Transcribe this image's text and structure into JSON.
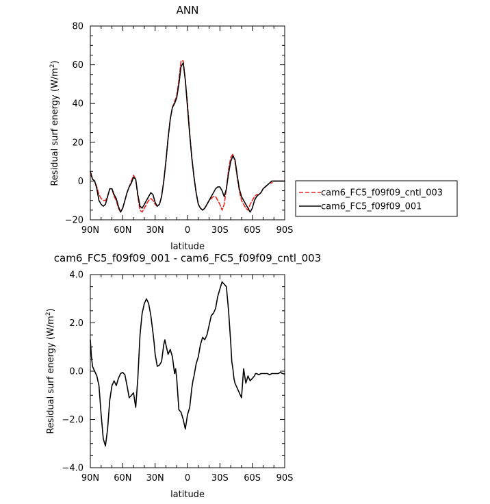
{
  "chart_data": [
    {
      "type": "line",
      "title": "ANN",
      "xlabel": "latitude",
      "ylabel": "Residual surf energy (W/m²)",
      "ylabel_parts": {
        "main": "Residual surf energy (W/m",
        "sup": "2",
        "end": ")"
      },
      "xlim": [
        90,
        -90
      ],
      "ylim": [
        -20,
        80
      ],
      "yticks": [
        -20,
        0,
        20,
        40,
        60,
        80
      ],
      "ytick_labels": [
        "−20",
        "0",
        "20",
        "40",
        "60",
        "80"
      ],
      "xticks": [
        90,
        60,
        30,
        0,
        -30,
        -60,
        -90
      ],
      "xtick_labels": [
        "90N",
        "60N",
        "30N",
        "0",
        "30S",
        "60S",
        "90S"
      ],
      "grid": false,
      "legend_position": "right",
      "series": [
        {
          "name": "cam6_FC5_f09f09_cntl_003",
          "color": "#e8231f",
          "dash": "dashed",
          "x": [
            90,
            88,
            86,
            84,
            82,
            80,
            78,
            76,
            74,
            72,
            70,
            68,
            66,
            64,
            62,
            60,
            58,
            56,
            54,
            52,
            50,
            48,
            46,
            44,
            42,
            40,
            38,
            36,
            34,
            32,
            30,
            28,
            26,
            24,
            22,
            20,
            18,
            16,
            14,
            12,
            10,
            8,
            6,
            4,
            2,
            0,
            -2,
            -4,
            -6,
            -8,
            -10,
            -12,
            -14,
            -16,
            -18,
            -20,
            -22,
            -24,
            -26,
            -28,
            -30,
            -32,
            -34,
            -36,
            -38,
            -40,
            -42,
            -44,
            -46,
            -48,
            -50,
            -52,
            -54,
            -56,
            -58,
            -60,
            -62,
            -64,
            -66,
            -68,
            -70,
            -72,
            -74,
            -76,
            -78,
            -80,
            -82,
            -84,
            -86,
            -88,
            -90
          ],
          "y": [
            4,
            1,
            0,
            -3,
            -7,
            -9,
            -10,
            -10,
            -8,
            -4,
            -4,
            -8,
            -10,
            -14,
            -16,
            -14,
            -10,
            -6,
            -3,
            0,
            3,
            1,
            -8,
            -15,
            -16,
            -14,
            -12,
            -10,
            -9,
            -10,
            -12,
            -13,
            -12,
            -8,
            0,
            10,
            22,
            32,
            38,
            41,
            44,
            52,
            62,
            62,
            52,
            40,
            25,
            12,
            2,
            -6,
            -12,
            -14,
            -15,
            -14,
            -12,
            -10,
            -9,
            -8,
            -8,
            -10,
            -12,
            -15,
            -12,
            -4,
            6,
            12,
            14,
            10,
            2,
            -5,
            -10,
            -12,
            -14,
            -15,
            -12,
            -10,
            -8,
            -7,
            -7,
            -6,
            -4,
            -3,
            -2,
            -1,
            -1,
            0,
            0,
            0,
            0,
            0,
            0
          ]
        },
        {
          "name": "cam6_FC5_f09f09_001",
          "color": "#000000",
          "dash": "solid",
          "x": [
            90,
            88,
            86,
            84,
            82,
            80,
            78,
            76,
            74,
            72,
            70,
            68,
            66,
            64,
            62,
            60,
            58,
            56,
            54,
            52,
            50,
            48,
            46,
            44,
            42,
            40,
            38,
            36,
            34,
            32,
            30,
            28,
            26,
            24,
            22,
            20,
            18,
            16,
            14,
            12,
            10,
            8,
            6,
            4,
            2,
            0,
            -2,
            -4,
            -6,
            -8,
            -10,
            -12,
            -14,
            -16,
            -18,
            -20,
            -22,
            -24,
            -26,
            -28,
            -30,
            -32,
            -34,
            -36,
            -38,
            -40,
            -42,
            -44,
            -46,
            -48,
            -50,
            -52,
            -54,
            -56,
            -58,
            -60,
            -62,
            -64,
            -66,
            -68,
            -70,
            -72,
            -74,
            -76,
            -78,
            -80,
            -82,
            -84,
            -86,
            -88,
            -90
          ],
          "y": [
            5,
            1,
            0,
            -4,
            -10,
            -12,
            -13,
            -12,
            -8,
            -4,
            -4,
            -7,
            -9,
            -13,
            -16,
            -14,
            -10,
            -6,
            -3,
            -1,
            2,
            1,
            -7,
            -13,
            -14,
            -12,
            -10,
            -8,
            -6,
            -7,
            -11,
            -13,
            -12,
            -8,
            0,
            10,
            22,
            32,
            38,
            40,
            43,
            50,
            59,
            61,
            52,
            38,
            24,
            12,
            2,
            -6,
            -12,
            -14,
            -15,
            -14,
            -12,
            -10,
            -8,
            -6,
            -4,
            -3,
            -3,
            -5,
            -8,
            -4,
            4,
            10,
            13,
            11,
            3,
            -4,
            -8,
            -10,
            -12,
            -14,
            -16,
            -14,
            -10,
            -8,
            -7,
            -6,
            -4,
            -3,
            -2,
            -1,
            0,
            0,
            0,
            0,
            0,
            0,
            0
          ]
        }
      ]
    },
    {
      "type": "line",
      "title": "cam6_FC5_f09f09_001 - cam6_FC5_f09f09_cntl_003",
      "xlabel": "latitude",
      "ylabel": "Residual surf energy (W/m²)",
      "ylabel_parts": {
        "main": "Residual surf energy (W/m",
        "sup": "2",
        "end": ")"
      },
      "xlim": [
        90,
        -90
      ],
      "ylim": [
        -4,
        4
      ],
      "yticks": [
        -4,
        -2,
        0,
        2,
        4
      ],
      "ytick_labels": [
        "−4.0",
        "−2.0",
        "0.0",
        "2.0",
        "4.0"
      ],
      "xticks": [
        90,
        60,
        30,
        0,
        -30,
        -60,
        -90
      ],
      "xtick_labels": [
        "90N",
        "60N",
        "30N",
        "0",
        "30S",
        "60S",
        "90S"
      ],
      "grid": false,
      "series": [
        {
          "color": "#000000",
          "dash": "solid",
          "x": [
            90,
            89,
            88,
            87,
            86,
            84,
            82,
            80,
            78,
            76,
            74,
            72,
            70,
            68,
            66,
            64,
            62,
            60,
            58,
            56,
            54,
            52,
            50,
            48,
            46,
            44,
            42,
            40,
            38,
            36,
            34,
            32,
            31,
            30,
            28,
            26,
            24,
            22,
            21,
            20,
            18,
            16,
            14,
            12,
            11,
            10,
            8,
            6,
            4,
            2,
            0,
            -2,
            -4,
            -5,
            -6,
            -8,
            -10,
            -12,
            -14,
            -16,
            -18,
            -20,
            -22,
            -24,
            -26,
            -28,
            -30,
            -32,
            -34,
            -36,
            -38,
            -40,
            -41,
            -42,
            -43,
            -44,
            -46,
            -48,
            -50,
            -52,
            -54,
            -56,
            -58,
            -60,
            -62,
            -63,
            -64,
            -66,
            -68,
            -70,
            -72,
            -74,
            -76,
            -78,
            -80,
            -82,
            -84,
            -86,
            -88,
            -90
          ],
          "y": [
            1.3,
            0.6,
            0.2,
            0.1,
            0.0,
            -0.2,
            -0.6,
            -1.8,
            -2.8,
            -3.1,
            -2.4,
            -1.2,
            -0.6,
            -0.4,
            -0.6,
            -0.3,
            -0.1,
            -0.05,
            -0.15,
            -0.6,
            -1.1,
            -1.0,
            -0.9,
            -1.5,
            -0.3,
            1.5,
            2.4,
            2.8,
            3.0,
            2.8,
            2.3,
            1.6,
            1.2,
            0.7,
            0.2,
            0.25,
            0.4,
            1.1,
            1.3,
            1.1,
            0.7,
            0.9,
            0.6,
            -0.1,
            0.1,
            -0.3,
            -1.6,
            -1.7,
            -2.0,
            -2.4,
            -1.8,
            -1.5,
            -0.7,
            -0.4,
            -0.2,
            0.3,
            0.6,
            1.1,
            1.4,
            1.3,
            1.5,
            1.9,
            2.3,
            2.4,
            2.6,
            3.1,
            3.4,
            3.7,
            3.6,
            3.5,
            2.5,
            1.2,
            0.4,
            0.1,
            -0.3,
            -0.5,
            -0.7,
            -0.9,
            -1.1,
            0.1,
            -0.5,
            -0.2,
            -0.4,
            -0.3,
            -0.2,
            -0.1,
            -0.1,
            -0.15,
            -0.1,
            -0.1,
            -0.1,
            -0.1,
            -0.15,
            -0.1,
            -0.1,
            -0.1,
            -0.1,
            -0.05,
            -0.1,
            -0.12
          ]
        }
      ]
    }
  ]
}
